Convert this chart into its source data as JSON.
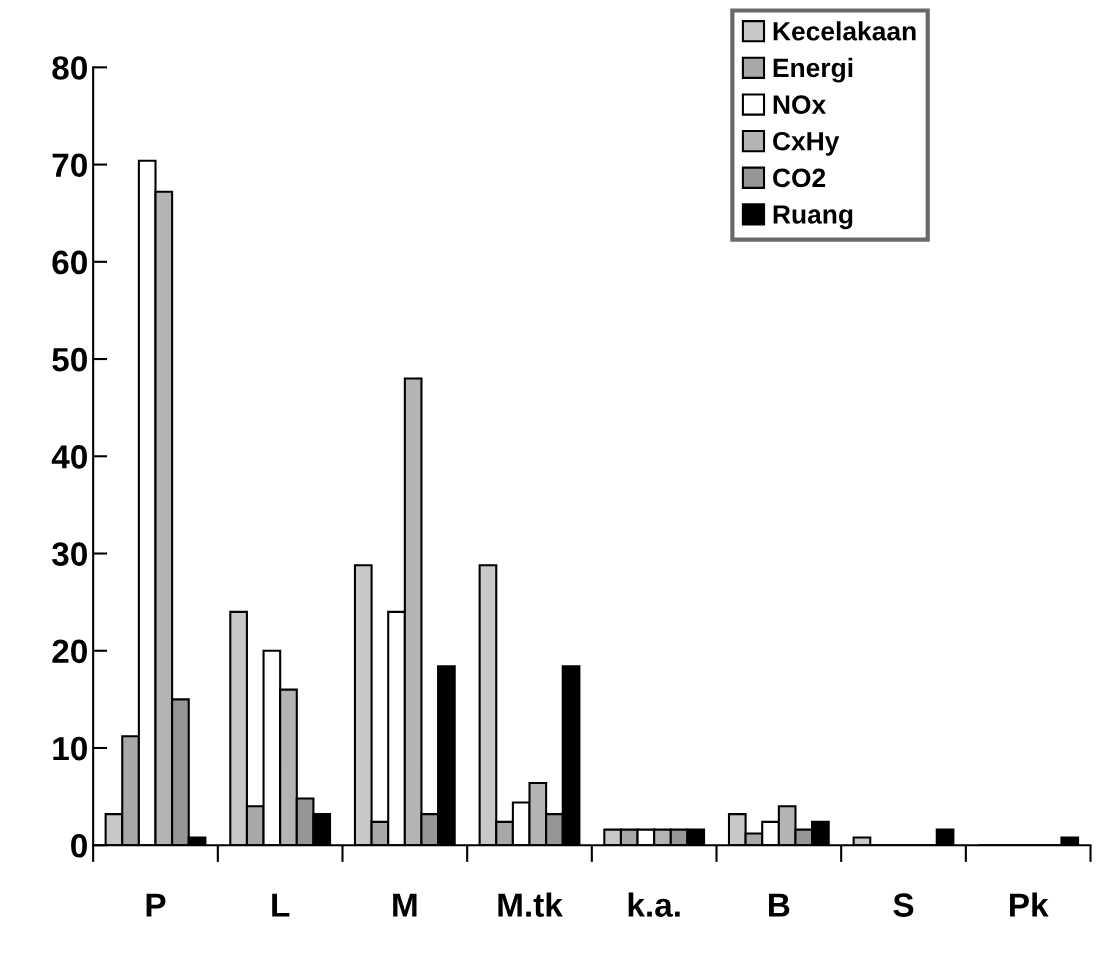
{
  "chart_data": {
    "type": "bar",
    "categories": [
      "P",
      "L",
      "M",
      "M.tk",
      "k.a.",
      "B",
      "S",
      "Pk"
    ],
    "series": [
      {
        "name": "Kecelakaan",
        "color": "#c8c8c8",
        "values": [
          3.2,
          24,
          28.8,
          28.8,
          1.6,
          3.2,
          0.8,
          0
        ]
      },
      {
        "name": "Energi",
        "color": "#a8a8a8",
        "values": [
          11.2,
          4,
          2.4,
          2.4,
          1.6,
          1.2,
          0,
          0
        ]
      },
      {
        "name": "NOx",
        "color": "#ffffff",
        "values": [
          70.4,
          20,
          24,
          4.4,
          1.6,
          2.4,
          0,
          0
        ]
      },
      {
        "name": "CxHy",
        "color": "#b4b4b4",
        "values": [
          67.2,
          16,
          48,
          6.4,
          1.6,
          4,
          0,
          0
        ]
      },
      {
        "name": "CO2",
        "color": "#969696",
        "values": [
          15,
          4.8,
          3.2,
          3.2,
          1.6,
          1.6,
          0,
          0
        ]
      },
      {
        "name": "Ruang",
        "color": "#000000",
        "values": [
          0.8,
          3.2,
          18.4,
          18.4,
          1.6,
          2.4,
          1.6,
          0.8
        ]
      }
    ],
    "ylim": [
      0,
      80
    ],
    "yticks": [
      0,
      10,
      20,
      30,
      40,
      50,
      60,
      70,
      80
    ],
    "grid": false,
    "legend": "top right"
  }
}
